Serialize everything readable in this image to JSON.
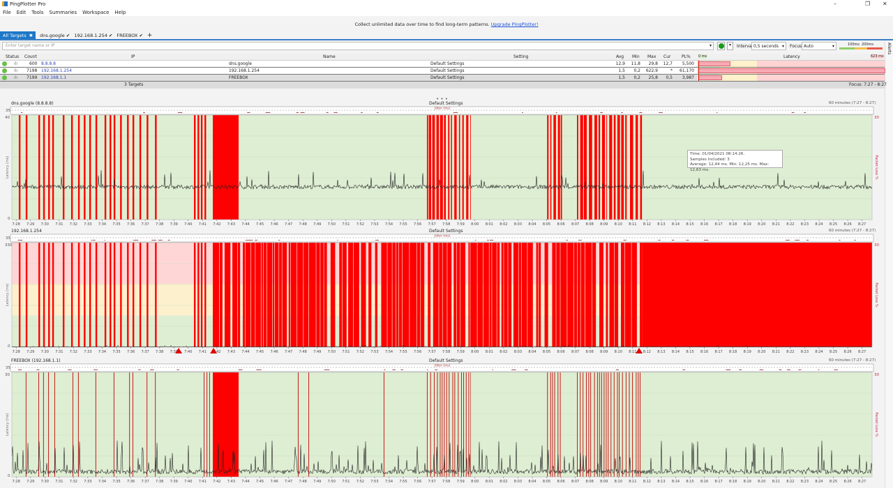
{
  "window": {
    "title": "PingPlotter Pro",
    "minimize": "–",
    "maximize": "❐",
    "close": "✕"
  },
  "menu": [
    "File",
    "Edit",
    "Tools",
    "Summaries",
    "Workspace",
    "Help"
  ],
  "banner": {
    "text": "Collect unlimited data over time to find long-term patterns.",
    "link": "Upgrade PingPlotter!"
  },
  "tabs": [
    {
      "label": "All Targets",
      "close": "✖"
    },
    {
      "label": "dns.google",
      "check": "✔"
    },
    {
      "label": "192.168.1.254",
      "check": "✔"
    },
    {
      "label": "FREEBOX",
      "check": "✔"
    }
  ],
  "add_tab": "+",
  "toolbar": {
    "target_placeholder": "Enter target name or IP",
    "interval_label": "Interval",
    "interval_value": "0,5 seconds",
    "focus_label": "Focus",
    "focus_value": "Auto",
    "scale_100": "100ms",
    "scale_200": "200ms",
    "alerts": "Alerts"
  },
  "table": {
    "columns": {
      "status": "Status",
      "count": "Count",
      "ip": "IP",
      "name": "Name",
      "setting": "Setting",
      "avg": "Avg",
      "min": "Min",
      "max": "Max",
      "cur": "Cur",
      "pl": "PL%",
      "latency": "Latency"
    },
    "latency_min": "0 ms",
    "latency_max": "623 ms",
    "rows": [
      {
        "count": "600",
        "ip": "8.8.8.8",
        "name": "dns.google",
        "setting": "Default Settings",
        "avg": "12,9",
        "min": "11,8",
        "max": "29,8",
        "cur": "12,7",
        "pl": "5,500"
      },
      {
        "count": "7198",
        "ip": "192.168.1.254",
        "name": "192.168.1.254",
        "setting": "Default Settings",
        "avg": "1,5",
        "min": "0,2",
        "max": "622,9",
        "cur": "*",
        "pl": "61,170"
      },
      {
        "count": "7199",
        "ip": "192.168.1.1",
        "name": "FREEBOX",
        "setting": "Default Settings",
        "avg": "1,5",
        "min": "0,2",
        "max": "25,8",
        "cur": "0,5",
        "pl": "3,987"
      }
    ],
    "footer_count": "3 Targets",
    "footer_focus": "Focus: 7:27 - 8:27"
  },
  "tooltip": {
    "line1": "Time: 01/04/2021 08:14:26.",
    "line2": "Samples Included: 3",
    "line3": "Average: 12,44 ms. Min: 12,25 ms. Max: 12,63 ms."
  },
  "chart_data": [
    {
      "type": "line",
      "title": "dns.google (8.8.8.8)",
      "setting": "Default Settings",
      "jitter_label": "Jitter (ms)",
      "jitter_max": "35",
      "ylabel": "Latency (ms)",
      "ylim": [
        0,
        40
      ],
      "y_tick_top": "40",
      "y_tick_bottom": "0",
      "y2label": "Packet Loss %",
      "y2_tick": "30",
      "range_label": "60 minutes (7:27 - 8:27)",
      "typical_latency_ms": 12.5,
      "bands": {
        "green_below_ms": 100,
        "yellow_below_ms": 200
      },
      "loss_events": [
        [
          "7:28:11",
          "7:28:18",
          "solid"
        ],
        [
          "7:28:40",
          "7:28:47",
          "solid"
        ],
        [
          "7:29:33",
          "7:29:40",
          "solid"
        ],
        [
          "7:29:53",
          "7:30:00",
          "solid"
        ],
        [
          "7:30:14",
          "7:30:21",
          "solid"
        ],
        [
          "7:30:31",
          "7:30:38",
          "solid"
        ],
        [
          "7:31:15",
          "7:31:22",
          "solid"
        ],
        [
          "7:31:50",
          "7:31:57",
          "solid"
        ],
        [
          "7:32:19",
          "7:32:26",
          "solid"
        ],
        [
          "7:32:43",
          "7:32:50",
          "solid"
        ],
        [
          "7:33:06",
          "7:33:13",
          "solid"
        ],
        [
          "7:33:32",
          "7:33:39",
          "solid"
        ],
        [
          "7:34:10",
          "7:34:17",
          "solid"
        ],
        [
          "7:34:31",
          "7:34:38",
          "solid"
        ],
        [
          "7:34:48",
          "7:34:55",
          "solid"
        ],
        [
          "7:35:15",
          "7:35:22",
          "solid"
        ],
        [
          "7:35:44",
          "7:35:51",
          "solid"
        ],
        [
          "7:36:07",
          "7:36:14",
          "solid"
        ],
        [
          "7:36:36",
          "7:36:43",
          "solid"
        ],
        [
          "7:37:06",
          "7:37:13",
          "solid"
        ],
        [
          "7:37:41",
          "7:37:48",
          "solid"
        ],
        [
          "7:40:24",
          "7:40:31",
          "solid"
        ],
        [
          "7:40:39",
          "7:40:46",
          "solid"
        ],
        [
          "7:40:53",
          "7:41:00",
          "solid"
        ],
        [
          "7:41:08",
          "7:41:15",
          "solid"
        ],
        [
          "7:41:43",
          "7:43:31",
          "solid"
        ],
        [
          "7:56:39",
          "7:59:43",
          "burst"
        ],
        [
          "8:05:02",
          "8:06:06",
          "burst"
        ],
        [
          "8:07:07",
          "8:09:13",
          "burst"
        ],
        [
          "8:09:22",
          "8:10:40",
          "burst"
        ],
        [
          "8:10:49",
          "8:11:39",
          "burst"
        ]
      ],
      "markers": []
    },
    {
      "type": "line",
      "title": "192.168.1.254",
      "setting": "Default Settings",
      "jitter_label": "Jitter (ms)",
      "jitter_max": "35",
      "ylabel": "Latency (ms)",
      "ylim": [
        0,
        330
      ],
      "y_tick_top": "330",
      "y_tick_bottom": "0",
      "y2label": "Packet Loss %",
      "y2_tick": "30",
      "range_label": "60 minutes (7:27 - 8:27)",
      "typical_latency_ms": 1.5,
      "bands": {
        "green_below_ms": 100,
        "yellow_below_ms": 200
      },
      "loss_events": [
        [
          "7:28:11",
          "7:28:18",
          "solid"
        ],
        [
          "7:28:40",
          "7:28:47",
          "solid"
        ],
        [
          "7:29:33",
          "7:29:40",
          "solid"
        ],
        [
          "7:29:53",
          "7:30:00",
          "solid"
        ],
        [
          "7:30:14",
          "7:30:21",
          "solid"
        ],
        [
          "7:30:31",
          "7:30:38",
          "solid"
        ],
        [
          "7:31:15",
          "7:31:22",
          "solid"
        ],
        [
          "7:31:50",
          "7:31:57",
          "solid"
        ],
        [
          "7:32:19",
          "7:32:26",
          "solid"
        ],
        [
          "7:32:43",
          "7:32:50",
          "solid"
        ],
        [
          "7:33:06",
          "7:33:13",
          "solid"
        ],
        [
          "7:33:32",
          "7:33:39",
          "solid"
        ],
        [
          "7:34:10",
          "7:34:17",
          "solid"
        ],
        [
          "7:34:31",
          "7:34:38",
          "solid"
        ],
        [
          "7:34:48",
          "7:34:55",
          "solid"
        ],
        [
          "7:35:15",
          "7:35:22",
          "solid"
        ],
        [
          "7:35:44",
          "7:35:51",
          "solid"
        ],
        [
          "7:36:07",
          "7:36:14",
          "solid"
        ],
        [
          "7:36:36",
          "7:36:43",
          "solid"
        ],
        [
          "7:37:06",
          "7:37:13",
          "solid"
        ],
        [
          "7:37:41",
          "7:37:48",
          "solid"
        ],
        [
          "7:40:24",
          "7:40:31",
          "solid"
        ],
        [
          "7:40:39",
          "7:40:46",
          "solid"
        ],
        [
          "7:40:53",
          "7:41:00",
          "solid"
        ],
        [
          "7:41:08",
          "7:41:15",
          "solid"
        ],
        [
          "7:41:43",
          "8:11:39",
          "dense"
        ],
        [
          "8:11:39",
          "8:27:42",
          "solid"
        ]
      ],
      "markers": [
        "7:39:20",
        "7:41:46",
        "8:11:27"
      ]
    },
    {
      "type": "line",
      "title": "FREEBOX (192.168.1.1)",
      "setting": "Default Settings",
      "jitter_label": "Jitter (ms)",
      "jitter_max": "35",
      "ylabel": "Latency (ms)",
      "ylim": [
        0,
        30
      ],
      "y_tick_top": "30",
      "y_tick_bottom": "0",
      "y2label": "Packet Loss %",
      "y2_tick": "30",
      "range_label": "60 minutes (7:27 - 8:27)",
      "typical_latency_ms": 1.5,
      "bands": {
        "green_below_ms": 100,
        "yellow_below_ms": 200
      },
      "loss_events": [
        [
          "7:28:40",
          "7:28:42",
          "thin"
        ],
        [
          "7:29:33",
          "7:29:35",
          "thin"
        ],
        [
          "7:29:53",
          "7:29:55",
          "thin"
        ],
        [
          "7:30:14",
          "7:30:16",
          "thin"
        ],
        [
          "7:30:40",
          "7:30:42",
          "thin"
        ],
        [
          "7:31:56",
          "7:31:58",
          "thin"
        ],
        [
          "7:32:19",
          "7:32:21",
          "thin"
        ],
        [
          "7:33:32",
          "7:33:34",
          "thin"
        ],
        [
          "7:34:48",
          "7:34:50",
          "thin"
        ],
        [
          "7:35:53",
          "7:35:55",
          "thin"
        ],
        [
          "7:36:07",
          "7:36:09",
          "thin"
        ],
        [
          "7:37:06",
          "7:37:08",
          "thin"
        ],
        [
          "7:37:41",
          "7:37:43",
          "thin"
        ],
        [
          "7:41:05",
          "7:41:07",
          "thin"
        ],
        [
          "7:41:17",
          "7:41:19",
          "thin"
        ],
        [
          "7:41:28",
          "7:41:30",
          "thin"
        ],
        [
          "7:41:43",
          "7:43:31",
          "solid"
        ],
        [
          "7:47:39",
          "7:47:41",
          "thin"
        ],
        [
          "7:48:23",
          "7:48:25",
          "thin"
        ],
        [
          "7:53:38",
          "7:53:40",
          "thin"
        ],
        [
          "7:56:39",
          "7:59:43",
          "lines"
        ],
        [
          "8:05:02",
          "8:06:06",
          "lines"
        ],
        [
          "8:07:07",
          "8:11:39",
          "lines"
        ]
      ],
      "markers": []
    }
  ],
  "x_ticks": [
    "7:28",
    "7:29",
    "7:30",
    "7:31",
    "7:32",
    "7:33",
    "7:34",
    "7:35",
    "7:36",
    "7:37",
    "7:38",
    "7:39",
    "7:40",
    "7:41",
    "7:42",
    "7:43",
    "7:44",
    "7:45",
    "7:46",
    "7:47",
    "7:48",
    "7:49",
    "7:50",
    "7:51",
    "7:52",
    "7:53",
    "7:54",
    "7:55",
    "7:56",
    "7:57",
    "7:58",
    "7:59",
    "8:00",
    "8:01",
    "8:02",
    "8:03",
    "8:04",
    "8:05",
    "8:06",
    "8:07",
    "8:08",
    "8:09",
    "8:10",
    "8:11",
    "8:12",
    "8:13",
    "8:14",
    "8:15",
    "8:16",
    "8:17",
    "8:18",
    "8:19",
    "8:20",
    "8:21",
    "8:22",
    "8:23",
    "8:24",
    "8:25",
    "8:26",
    "8:27"
  ],
  "x_domain": [
    "7:27:42",
    "8:27:42"
  ],
  "colors": {
    "loss": "#ff0000",
    "thin_loss": "#c81818",
    "green_band": "#deeed3",
    "yellow_band": "#fdf0cc",
    "red_band": "#ffd6d6",
    "accent": "#1e78c8"
  }
}
